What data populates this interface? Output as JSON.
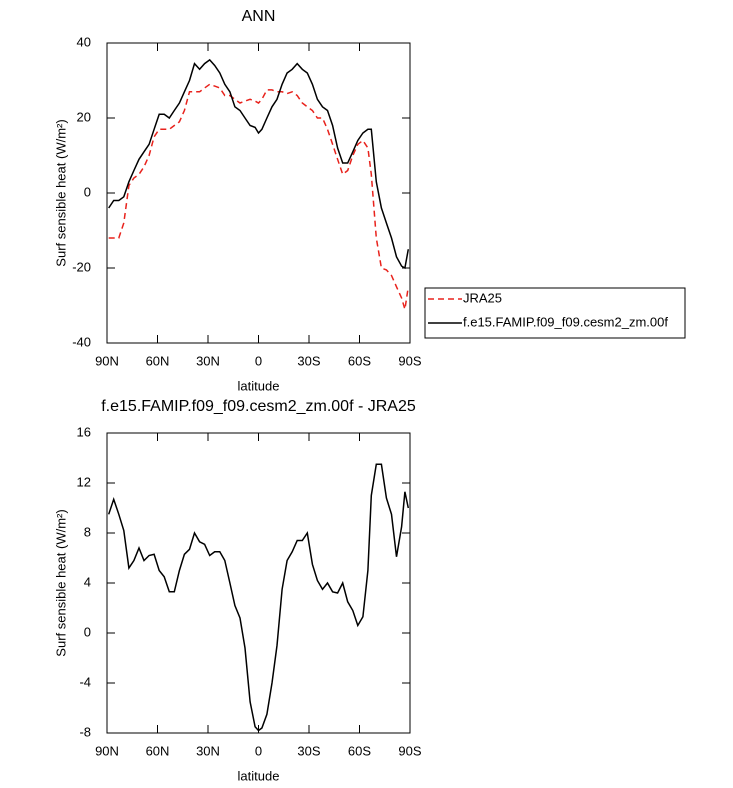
{
  "chart_data": [
    {
      "type": "line",
      "title": "ANN",
      "xlabel": "latitude",
      "ylabel": "Surf sensible heat (W/m²)",
      "x": [
        89,
        86,
        83,
        80,
        77,
        74,
        71,
        68,
        65,
        62,
        59,
        56,
        53,
        50,
        47,
        44,
        41,
        38,
        35,
        32,
        29,
        26,
        23,
        20,
        17,
        14,
        11,
        8,
        5,
        2,
        0,
        -2,
        -5,
        -8,
        -11,
        -14,
        -17,
        -20,
        -23,
        -26,
        -29,
        -32,
        -35,
        -38,
        -41,
        -44,
        -47,
        -50,
        -53,
        -56,
        -59,
        -62,
        -65,
        -67,
        -70,
        -73,
        -76,
        -79,
        -82,
        -85,
        -87,
        -89
      ],
      "series": [
        {
          "name": "JRA25",
          "color": "#e8221c",
          "style": "dashed",
          "values": [
            -12,
            -12,
            -12,
            -8,
            2,
            4,
            5,
            7,
            10,
            15,
            17,
            17,
            17,
            18,
            19,
            22,
            27,
            27,
            27,
            28,
            29,
            28.5,
            28,
            26,
            26,
            25,
            24,
            24.5,
            25,
            24.5,
            24,
            25,
            27.5,
            27.5,
            27,
            27,
            26.5,
            27,
            26,
            24,
            23,
            22,
            20,
            20,
            17,
            13,
            9,
            5,
            6,
            10,
            13,
            14,
            12,
            5,
            -12,
            -20,
            -20.5,
            -22,
            -25,
            -28,
            -31,
            -25
          ]
        },
        {
          "name": "f.e15.FAMIP.f09_f09.cesm2_zm.00f",
          "color": "#000000",
          "style": "solid",
          "values": [
            -4,
            -2,
            -2,
            -1,
            3,
            6,
            9,
            11,
            13,
            17,
            21,
            21,
            20,
            22,
            24,
            27,
            30,
            34.5,
            33,
            34.5,
            35.5,
            34,
            32,
            29,
            27,
            23,
            22,
            20,
            18,
            17.5,
            16,
            17,
            20,
            23,
            25,
            29,
            32,
            33,
            34.5,
            33,
            32,
            29,
            25,
            23,
            22,
            18,
            12,
            8,
            8,
            11,
            14,
            16,
            17,
            17,
            3,
            -4,
            -8,
            -12,
            -17,
            -19.5,
            -20,
            -15
          ]
        }
      ],
      "xlim": [
        90,
        -90
      ],
      "xticks": [
        {
          "value": 90,
          "label": "90N"
        },
        {
          "value": 60,
          "label": "60N"
        },
        {
          "value": 30,
          "label": "30N"
        },
        0,
        {
          "value": -30,
          "label": "30S"
        },
        {
          "value": -60,
          "label": "60S"
        },
        {
          "value": -90,
          "label": "90S"
        }
      ],
      "ylim": [
        -40,
        40
      ],
      "yticks": [
        40,
        20,
        0,
        -20,
        -40
      ],
      "legend": "right"
    },
    {
      "type": "line",
      "title": "f.e15.FAMIP.f09_f09.cesm2_zm.00f - JRA25",
      "xlabel": "latitude",
      "ylabel": "Surf sensible heat (W/m²)",
      "x": [
        89,
        86,
        83,
        80,
        77,
        74,
        71,
        68,
        65,
        62,
        59,
        56,
        53,
        50,
        47,
        44,
        41,
        38,
        35,
        32,
        29,
        26,
        23,
        20,
        17,
        14,
        11,
        8,
        5,
        2,
        0,
        -2,
        -5,
        -8,
        -11,
        -14,
        -17,
        -20,
        -23,
        -26,
        -29,
        -32,
        -35,
        -38,
        -41,
        -44,
        -47,
        -50,
        -53,
        -56,
        -59,
        -62,
        -65,
        -67,
        -70,
        -73,
        -76,
        -79,
        -82,
        -85,
        -87,
        -89
      ],
      "values": [
        9.5,
        10.7,
        9.5,
        8.2,
        5.2,
        5.8,
        6.8,
        5.8,
        6.2,
        6.3,
        5,
        4.5,
        3.3,
        3.3,
        5,
        6.3,
        6.7,
        8,
        7.3,
        7.1,
        6.2,
        6.5,
        6.5,
        5.8,
        4,
        2.2,
        1.2,
        -1.2,
        -5.5,
        -7.5,
        -7.8,
        -7.6,
        -6.5,
        -4,
        -1,
        3.5,
        5.8,
        6.5,
        7.4,
        7.4,
        8,
        5.5,
        4.2,
        3.5,
        4,
        3.3,
        3.2,
        4,
        2.5,
        1.8,
        0.6,
        1.3,
        5,
        11,
        13.5,
        13.5,
        10.8,
        9.5,
        6.1,
        8.5,
        11.3,
        10
      ],
      "color": "#000000",
      "xlim": [
        90,
        -90
      ],
      "xticks": [
        {
          "value": 90,
          "label": "90N"
        },
        {
          "value": 60,
          "label": "60N"
        },
        {
          "value": 30,
          "label": "30N"
        },
        0,
        {
          "value": -30,
          "label": "30S"
        },
        {
          "value": -60,
          "label": "60S"
        },
        {
          "value": -90,
          "label": "90S"
        }
      ],
      "ylim": [
        -8,
        16
      ],
      "yticks": [
        16,
        12,
        8,
        4,
        0,
        -4,
        -8
      ]
    }
  ]
}
